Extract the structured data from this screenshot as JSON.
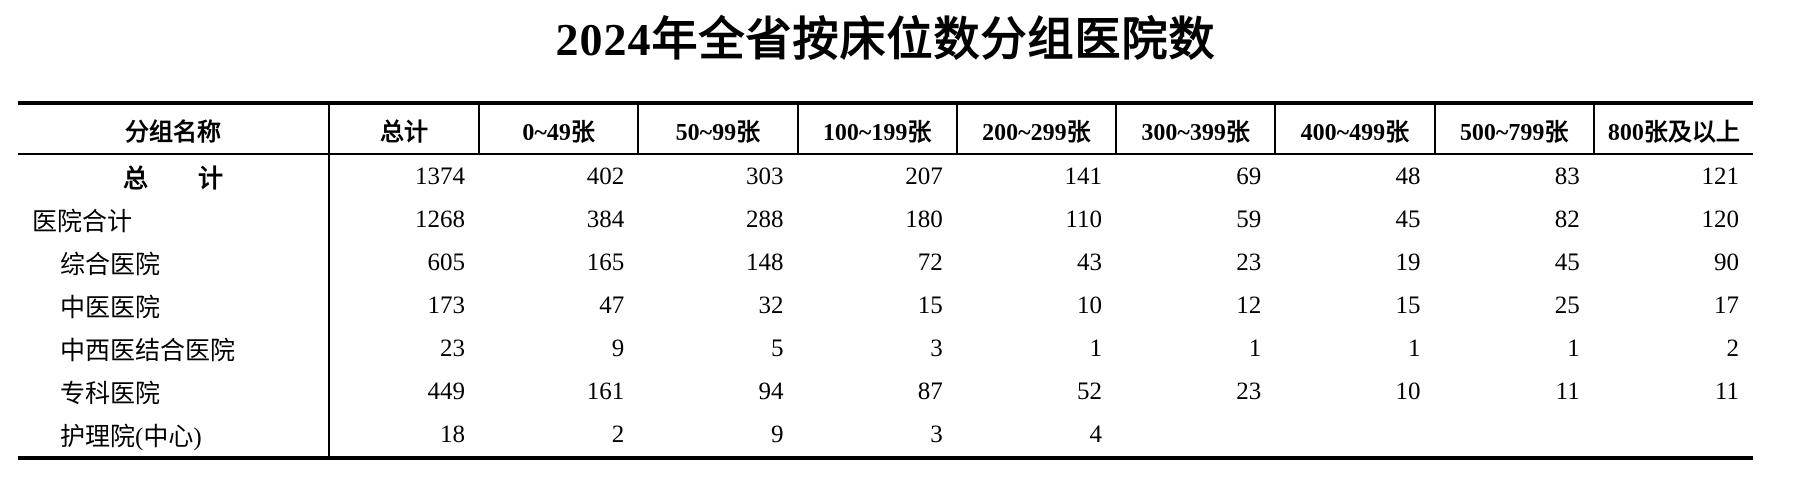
{
  "title": "2024年全省按床位数分组医院数",
  "chart_data": {
    "type": "table",
    "title": "2024年全省按床位数分组医院数",
    "columns": [
      "分组名称",
      "总计",
      "0~49张",
      "50~99张",
      "100~199张",
      "200~299张",
      "300~399张",
      "400~499张",
      "500~799张",
      "800张及以上"
    ],
    "rows": [
      {
        "label": "总　　计",
        "bold": true,
        "center": true,
        "indent": 0,
        "values": [
          1374,
          402,
          303,
          207,
          141,
          69,
          48,
          83,
          121
        ]
      },
      {
        "label": "医院合计",
        "bold": false,
        "center": false,
        "indent": 0,
        "values": [
          1268,
          384,
          288,
          180,
          110,
          59,
          45,
          82,
          120
        ]
      },
      {
        "label": "综合医院",
        "bold": false,
        "center": false,
        "indent": 1,
        "values": [
          605,
          165,
          148,
          72,
          43,
          23,
          19,
          45,
          90
        ]
      },
      {
        "label": "中医医院",
        "bold": false,
        "center": false,
        "indent": 1,
        "values": [
          173,
          47,
          32,
          15,
          10,
          12,
          15,
          25,
          17
        ]
      },
      {
        "label": "中西医结合医院",
        "bold": false,
        "center": false,
        "indent": 1,
        "values": [
          23,
          9,
          5,
          3,
          1,
          1,
          1,
          1,
          2
        ]
      },
      {
        "label": "专科医院",
        "bold": false,
        "center": false,
        "indent": 1,
        "values": [
          449,
          161,
          94,
          87,
          52,
          23,
          10,
          11,
          11
        ]
      },
      {
        "label": "护理院(中心)",
        "bold": false,
        "center": false,
        "indent": 1,
        "values": [
          18,
          2,
          9,
          3,
          4,
          null,
          null,
          null,
          null
        ]
      }
    ]
  },
  "style": {
    "background": "#ffffff",
    "text_color": "#000000",
    "border_color": "#000000"
  }
}
